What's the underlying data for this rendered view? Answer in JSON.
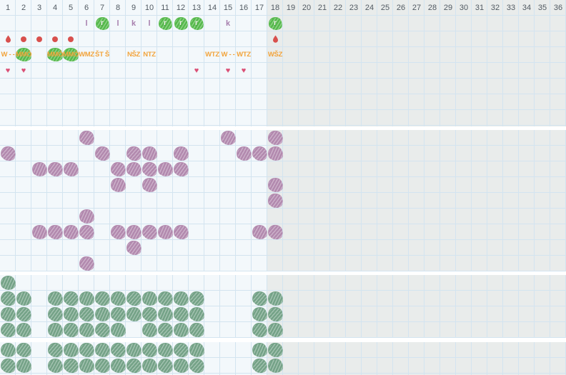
{
  "header": {
    "weeks": [
      "1",
      "2",
      "3",
      "4",
      "5",
      "6",
      "7",
      "8",
      "9",
      "10",
      "11",
      "12",
      "13",
      "14",
      "15",
      "16",
      "17",
      "18",
      "19",
      "20",
      "21",
      "22",
      "23",
      "24",
      "25",
      "26",
      "27",
      "28",
      "29",
      "30",
      "31",
      "32",
      "33",
      "34",
      "35",
      "36"
    ]
  },
  "icons": {
    "heart_glyph": "♥",
    "water_droplet": "droplet-icon",
    "watering_dot": "red-dot-icon",
    "sow_blob": "green-scribble-icon",
    "flower_blob": "purple-scribble-icon",
    "leaf_blob": "sage-scribble-icon"
  },
  "colors": {
    "light_bg": "#f3f8fb",
    "future_bg": "#e9eceb",
    "grid_line": "#d3e4f0",
    "week_number": "#515a62",
    "letter": "#a77fad",
    "green_blob": "#55b94b",
    "blob_letter": "#f1f8ec",
    "red": "#d8504d",
    "orange": "#f2a43c",
    "heart": "#db5076",
    "flower_blob": "#b289ae",
    "leaf_blob": "#74a287"
  },
  "calendar": {
    "info": {
      "letter_row": [
        {
          "week": 6,
          "letter": "l",
          "blob": false
        },
        {
          "week": 7,
          "letter": "r",
          "blob": true
        },
        {
          "week": 8,
          "letter": "l",
          "blob": false
        },
        {
          "week": 9,
          "letter": "k",
          "blob": false
        },
        {
          "week": 10,
          "letter": "l",
          "blob": false
        },
        {
          "week": 11,
          "letter": "r",
          "blob": true
        },
        {
          "week": 12,
          "letter": "r",
          "blob": true
        },
        {
          "week": 13,
          "letter": "r",
          "blob": true
        },
        {
          "week": 15,
          "letter": "k",
          "blob": false
        },
        {
          "week": 18,
          "letter": "r",
          "blob": true
        }
      ],
      "water_row": [
        {
          "week": 1,
          "icon": "droplet"
        },
        {
          "week": 2,
          "icon": "dot"
        },
        {
          "week": 3,
          "icon": "dot"
        },
        {
          "week": 4,
          "icon": "dot"
        },
        {
          "week": 5,
          "icon": "dot"
        },
        {
          "week": 18,
          "icon": "droplet"
        }
      ],
      "code_row": [
        {
          "week": 1,
          "code": "W - -",
          "blob": false
        },
        {
          "week": 2,
          "code": "MMÓ",
          "blob": true
        },
        {
          "week": 4,
          "code": "MMÓ",
          "blob": true
        },
        {
          "week": 5,
          "code": "MMÓ",
          "blob": true
        },
        {
          "week": 6,
          "code": "WMZ",
          "blob": false
        },
        {
          "week": 7,
          "code": "ŠT Š",
          "blob": false
        },
        {
          "week": 9,
          "code": "NŠZ",
          "blob": false
        },
        {
          "week": 10,
          "code": "NTZ",
          "blob": false
        },
        {
          "week": 14,
          "code": "WTZ",
          "blob": false
        },
        {
          "week": 15,
          "code": "W - -",
          "blob": false
        },
        {
          "week": 16,
          "code": "WTZ",
          "blob": false
        },
        {
          "week": 18,
          "code": "WŠZ",
          "blob": false
        }
      ],
      "heart_row": [
        1,
        2,
        13,
        15,
        16
      ]
    },
    "flower_section": {
      "rows": [
        {
          "row": 1,
          "weeks": [
            6,
            15,
            18
          ]
        },
        {
          "row": 2,
          "weeks": [
            1,
            7,
            9,
            10,
            12,
            16,
            17,
            18
          ]
        },
        {
          "row": 3,
          "weeks": [
            3,
            4,
            5,
            8,
            9,
            10,
            11,
            12
          ]
        },
        {
          "row": 4,
          "weeks": [
            8,
            10,
            18
          ]
        },
        {
          "row": 5,
          "weeks": [
            18
          ]
        },
        {
          "row": 6,
          "weeks": [
            6
          ]
        },
        {
          "row": 7,
          "weeks": [
            3,
            4,
            5,
            6,
            8,
            9,
            10,
            11,
            12,
            17,
            18
          ]
        },
        {
          "row": 8,
          "weeks": [
            9
          ]
        },
        {
          "row": 9,
          "weeks": [
            6
          ]
        }
      ]
    },
    "green_section_1": {
      "rows": [
        {
          "row": 1,
          "weeks": [
            1
          ]
        },
        {
          "row": 2,
          "weeks": [
            1,
            2,
            4,
            5,
            6,
            7,
            8,
            9,
            10,
            11,
            12,
            13,
            17,
            18
          ]
        },
        {
          "row": 3,
          "weeks": [
            1,
            2,
            4,
            5,
            6,
            7,
            8,
            9,
            10,
            11,
            12,
            13,
            17,
            18
          ]
        },
        {
          "row": 4,
          "weeks": [
            1,
            2,
            4,
            5,
            6,
            7,
            8,
            10,
            11,
            12,
            13,
            17,
            18
          ]
        }
      ]
    },
    "green_section_2": {
      "rows": [
        {
          "row": 1,
          "weeks": [
            1,
            2,
            4,
            5,
            6,
            7,
            8,
            9,
            10,
            11,
            12,
            13,
            17,
            18
          ]
        },
        {
          "row": 2,
          "weeks": [
            1,
            2,
            4,
            5,
            6,
            7,
            8,
            9,
            10,
            11,
            12,
            13,
            17,
            18
          ]
        }
      ]
    }
  }
}
